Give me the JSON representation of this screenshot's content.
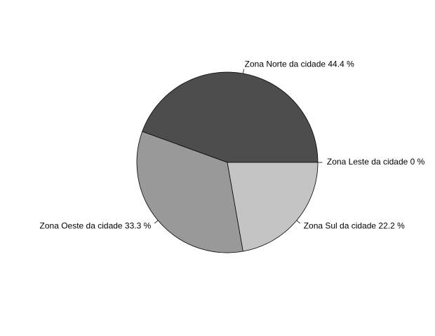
{
  "chart_data": {
    "type": "pie",
    "title": "",
    "direction": "counterclockwise",
    "start": "east",
    "slices": [
      {
        "label": "Zona Leste da cidade 0 %",
        "value": 0,
        "color": "#ffffff"
      },
      {
        "label": "Zona Norte da cidade 44.4 %",
        "value": 44.4,
        "color": "#4d4d4d"
      },
      {
        "label": "Zona Oeste da cidade 33.3 %",
        "value": 33.3,
        "color": "#999999"
      },
      {
        "label": "Zona Sul da cidade 22.2 %",
        "value": 22.2,
        "color": "#c4c4c4"
      }
    ]
  }
}
